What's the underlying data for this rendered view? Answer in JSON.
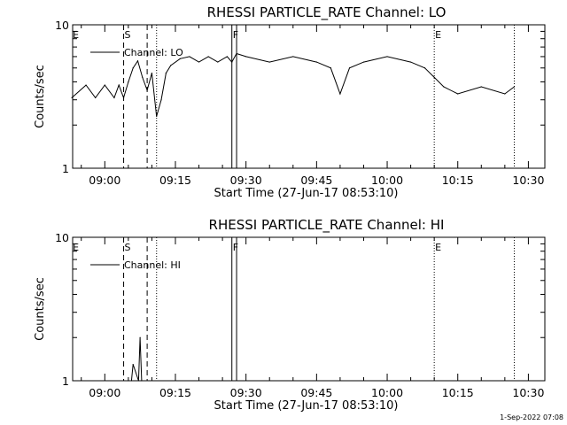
{
  "chart_data": [
    {
      "type": "line",
      "title": "RHESSI PARTICLE_RATE Channel: LO",
      "xlabel": "Start Time (27-Jun-17 08:53:10)",
      "ylabel": "Counts/sec",
      "y_scale": "log",
      "ylim": [
        1,
        10
      ],
      "xlim": [
        "08:53:10",
        "10:33:30"
      ],
      "x_ticks": [
        "09:00",
        "09:15",
        "09:30",
        "09:45",
        "10:00",
        "10:15",
        "10:30"
      ],
      "y_ticks": [
        "1",
        "10"
      ],
      "grid": false,
      "legend_position": "top-left",
      "series": [
        {
          "name": "Channel: LO",
          "x": [
            "08:53",
            "08:56",
            "08:58",
            "09:00",
            "09:02",
            "09:03",
            "09:04",
            "09:05",
            "09:06",
            "09:07",
            "09:08",
            "09:09",
            "09:10",
            "09:11",
            "09:12",
            "09:13",
            "09:14",
            "09:16",
            "09:18",
            "09:20",
            "09:22",
            "09:24",
            "09:26",
            "09:27",
            "09:28",
            "09:30",
            "09:35",
            "09:40",
            "09:45",
            "09:48",
            "09:50",
            "09:52",
            "09:55",
            "10:00",
            "10:05",
            "10:08",
            "10:10",
            "10:12",
            "10:15",
            "10:20",
            "10:25",
            "10:27"
          ],
          "y": [
            3.1,
            3.8,
            3.1,
            3.8,
            3.1,
            3.8,
            3.1,
            4.0,
            5.0,
            5.6,
            4.3,
            3.5,
            4.6,
            2.3,
            3.0,
            4.6,
            5.2,
            5.8,
            6.0,
            5.5,
            6.0,
            5.5,
            6.0,
            5.5,
            6.3,
            6.0,
            5.5,
            6.0,
            5.5,
            5.0,
            3.3,
            5.0,
            5.5,
            6.0,
            5.5,
            5.0,
            4.3,
            3.7,
            3.3,
            3.7,
            3.3,
            3.7
          ]
        }
      ],
      "annotations": [
        {
          "label": "E",
          "time": "08:53",
          "line": "none"
        },
        {
          "label": "S",
          "time": "09:04",
          "line": "dashed"
        },
        {
          "label": "",
          "time": "09:09",
          "line": "dashed"
        },
        {
          "label": "",
          "time": "09:11",
          "line": "dotted"
        },
        {
          "label": "F",
          "time": "09:27",
          "line": "solid"
        },
        {
          "label": "",
          "time": "09:28",
          "line": "solid"
        },
        {
          "label": "E",
          "time": "10:10",
          "line": "dotted"
        },
        {
          "label": "",
          "time": "10:27",
          "line": "dotted"
        }
      ]
    },
    {
      "type": "line",
      "title": "RHESSI PARTICLE_RATE Channel: HI",
      "xlabel": "Start Time (27-Jun-17 08:53:10)",
      "ylabel": "Counts/sec",
      "y_scale": "log",
      "ylim": [
        1,
        10
      ],
      "xlim": [
        "08:53:10",
        "10:33:30"
      ],
      "x_ticks": [
        "09:00",
        "09:15",
        "09:30",
        "09:45",
        "10:00",
        "10:15",
        "10:30"
      ],
      "y_ticks": [
        "1",
        "10"
      ],
      "grid": false,
      "legend_position": "top-left",
      "series": [
        {
          "name": "Channel: HI",
          "x": [
            "09:05:00",
            "09:05:40",
            "09:06:00",
            "09:07:10",
            "09:07:30",
            "09:07:50"
          ],
          "y": [
            1,
            1,
            1.3,
            1,
            2,
            1
          ]
        }
      ],
      "annotations": [
        {
          "label": "E",
          "time": "08:53",
          "line": "none"
        },
        {
          "label": "S",
          "time": "09:04",
          "line": "dashed"
        },
        {
          "label": "",
          "time": "09:09",
          "line": "dashed"
        },
        {
          "label": "",
          "time": "09:11",
          "line": "dotted"
        },
        {
          "label": "F",
          "time": "09:27",
          "line": "solid"
        },
        {
          "label": "",
          "time": "09:28",
          "line": "solid"
        },
        {
          "label": "E",
          "time": "10:10",
          "line": "dotted"
        },
        {
          "label": "",
          "time": "10:27",
          "line": "dotted"
        }
      ]
    }
  ],
  "footer_stamp": "1-Sep-2022 07:08"
}
